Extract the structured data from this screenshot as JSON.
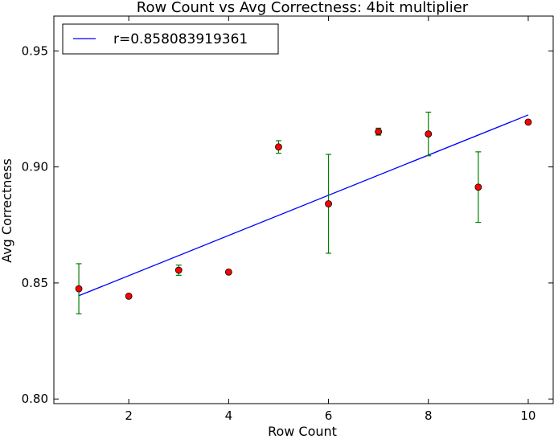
{
  "chart_data": {
    "type": "scatter",
    "title": "Row Count vs Avg Correctness: 4bit multiplier",
    "xlabel": "Row Count",
    "ylabel": "Avg Correctness",
    "xlim": [
      0.5,
      10.5
    ],
    "ylim": [
      0.798,
      0.965
    ],
    "xticks": [
      2,
      4,
      6,
      8,
      10
    ],
    "xtick_labels": [
      "2",
      "4",
      "6",
      "8",
      "10"
    ],
    "yticks": [
      0.8,
      0.85,
      0.9,
      0.95
    ],
    "ytick_labels": [
      "0.80",
      "0.85",
      "0.90",
      "0.95"
    ],
    "grid": false,
    "legend_position": "top-left",
    "series": [
      {
        "kind": "errorbar-points",
        "x": [
          1,
          2,
          3,
          4,
          5,
          6,
          7,
          8,
          9,
          10
        ],
        "y": [
          0.8475,
          0.8443,
          0.8555,
          0.8547,
          0.9086,
          0.8841,
          0.9152,
          0.9142,
          0.8913,
          0.9193
        ],
        "yerr": [
          0.0108,
          0.0002,
          0.0022,
          0.0005,
          0.0027,
          0.0213,
          0.0015,
          0.0094,
          0.0152,
          0.0005
        ],
        "marker_color": "#ff0000",
        "error_color": "#008000"
      },
      {
        "kind": "fit-line",
        "name": "r=0.858083919361",
        "x": [
          1,
          10
        ],
        "y": [
          0.8445,
          0.9224
        ],
        "color": "#0000ff"
      }
    ]
  }
}
